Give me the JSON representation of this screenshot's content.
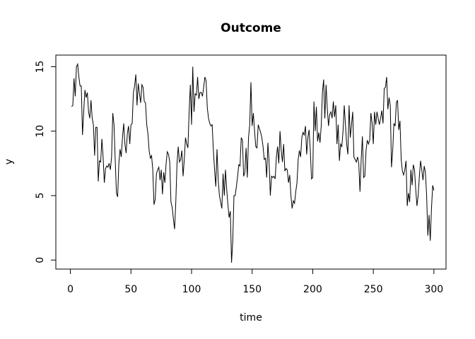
{
  "chart_data": {
    "type": "line",
    "title": "Outcome",
    "x_label": "time",
    "y_label": "y",
    "xlim": [
      -12,
      310
    ],
    "ylim": [
      -0.7,
      15.9
    ],
    "xticks": [
      0,
      50,
      100,
      150,
      200,
      250,
      300
    ],
    "yticks": [
      0,
      5,
      10,
      15
    ],
    "color": "#000000",
    "x": [
      1,
      2,
      3,
      4,
      5,
      6,
      7,
      8,
      9,
      10,
      11,
      12,
      13,
      14,
      15,
      16,
      17,
      18,
      19,
      20,
      21,
      22,
      23,
      24,
      25,
      26,
      27,
      28,
      29,
      30,
      31,
      32,
      33,
      34,
      35,
      36,
      37,
      38,
      39,
      40,
      41,
      42,
      43,
      44,
      45,
      46,
      47,
      48,
      49,
      50,
      51,
      52,
      53,
      54,
      55,
      56,
      57,
      58,
      59,
      60,
      61,
      62,
      63,
      64,
      65,
      66,
      67,
      68,
      69,
      70,
      71,
      72,
      73,
      74,
      75,
      76,
      77,
      78,
      79,
      80,
      81,
      82,
      83,
      84,
      85,
      86,
      87,
      88,
      89,
      90,
      91,
      92,
      93,
      94,
      95,
      96,
      97,
      98,
      99,
      100,
      101,
      102,
      103,
      104,
      105,
      106,
      107,
      108,
      109,
      110,
      111,
      112,
      113,
      114,
      115,
      116,
      117,
      118,
      119,
      120,
      121,
      122,
      123,
      124,
      125,
      126,
      127,
      128,
      129,
      130,
      131,
      132,
      133,
      134,
      135,
      136,
      137,
      138,
      139,
      140,
      141,
      142,
      143,
      144,
      145,
      146,
      147,
      148,
      149,
      150,
      151,
      152,
      153,
      154,
      155,
      156,
      157,
      158,
      159,
      160,
      161,
      162,
      163,
      164,
      165,
      166,
      167,
      168,
      169,
      170,
      171,
      172,
      173,
      174,
      175,
      176,
      177,
      178,
      179,
      180,
      181,
      182,
      183,
      184,
      185,
      186,
      187,
      188,
      189,
      190,
      191,
      192,
      193,
      194,
      195,
      196,
      197,
      198,
      199,
      200,
      201,
      202,
      203,
      204,
      205,
      206,
      207,
      208,
      209,
      210,
      211,
      212,
      213,
      214,
      215,
      216,
      217,
      218,
      219,
      220,
      221,
      222,
      223,
      224,
      225,
      226,
      227,
      228,
      229,
      230,
      231,
      232,
      233,
      234,
      235,
      236,
      237,
      238,
      239,
      240,
      241,
      242,
      243,
      244,
      245,
      246,
      247,
      248,
      249,
      250,
      251,
      252,
      253,
      254,
      255,
      256,
      257,
      258,
      259,
      260,
      261,
      262,
      263,
      264,
      265,
      266,
      267,
      268,
      269,
      270,
      271,
      272,
      273,
      274,
      275,
      276,
      277,
      278,
      279,
      280,
      281,
      282,
      283,
      284,
      285,
      286,
      287,
      288,
      289,
      290,
      291,
      292,
      293,
      294,
      295,
      296,
      297,
      298,
      299,
      300
    ],
    "values": [
      11.9,
      12.0,
      14.1,
      12.7,
      15.0,
      15.2,
      14.2,
      13.5,
      13.5,
      9.7,
      11.5,
      13.2,
      12.6,
      13.0,
      11.5,
      11.0,
      12.4,
      11.0,
      10.5,
      8.1,
      10.3,
      10.3,
      6.1,
      7.7,
      7.6,
      9.4,
      8.0,
      6.0,
      7.1,
      7.3,
      7.2,
      7.5,
      7.0,
      8.0,
      11.4,
      10.5,
      7.8,
      5.2,
      4.9,
      7.5,
      8.6,
      8.0,
      9.5,
      10.6,
      9.0,
      8.3,
      9.8,
      10.4,
      9.0,
      10.5,
      10.6,
      13.0,
      13.5,
      14.4,
      12.0,
      13.7,
      12.9,
      12.2,
      13.6,
      13.4,
      12.3,
      12.2,
      10.5,
      9.8,
      8.5,
      7.9,
      8.1,
      7.0,
      4.3,
      4.7,
      6.7,
      7.0,
      7.2,
      6.2,
      7.0,
      5.1,
      6.8,
      6.0,
      7.5,
      8.4,
      8.2,
      7.6,
      4.5,
      4.1,
      3.2,
      2.4,
      4.5,
      7.5,
      8.8,
      7.6,
      7.8,
      8.5,
      6.5,
      7.8,
      9.5,
      9.0,
      8.7,
      11.5,
      13.6,
      10.5,
      15.0,
      11.5,
      12.9,
      12.8,
      14.2,
      12.5,
      13.0,
      13.0,
      12.7,
      13.4,
      14.2,
      13.9,
      11.8,
      11.0,
      10.6,
      10.4,
      10.5,
      8.5,
      7.0,
      5.7,
      8.6,
      6.2,
      5.0,
      4.5,
      4.0,
      6.7,
      5.0,
      7.0,
      5.5,
      4.3,
      3.3,
      3.8,
      -0.2,
      1.5,
      5.0,
      5.0,
      5.7,
      6.5,
      7.4,
      7.3,
      9.5,
      9.3,
      6.5,
      6.8,
      8.7,
      6.4,
      9.5,
      10.5,
      13.8,
      10.4,
      11.4,
      10.0,
      8.8,
      8.7,
      10.5,
      10.2,
      9.9,
      9.5,
      8.8,
      7.8,
      7.9,
      6.4,
      9.1,
      7.6,
      5.0,
      6.5,
      6.4,
      6.5,
      6.3,
      8.0,
      8.8,
      7.5,
      10.0,
      8.5,
      7.6,
      9.0,
      6.9,
      7.1,
      7.0,
      6.0,
      6.6,
      5.0,
      4.0,
      4.6,
      4.4,
      5.3,
      6.0,
      7.8,
      8.5,
      8.0,
      9.5,
      9.9,
      9.7,
      10.4,
      8.2,
      9.5,
      10.1,
      8.5,
      6.3,
      6.4,
      12.3,
      10.0,
      11.9,
      9.2,
      9.9,
      9.1,
      10.4,
      13.0,
      14.0,
      11.0,
      13.6,
      11.8,
      10.4,
      11.3,
      11.5,
      11.0,
      12.3,
      11.1,
      12.0,
      9.0,
      10.5,
      7.7,
      9.0,
      8.8,
      10.0,
      12.0,
      10.5,
      9.0,
      8.2,
      12.0,
      9.5,
      10.5,
      11.5,
      8.0,
      7.8,
      7.6,
      8.0,
      7.5,
      5.3,
      7.8,
      9.6,
      6.4,
      6.5,
      8.5,
      9.3,
      9.0,
      9.3,
      11.4,
      10.6,
      9.0,
      11.5,
      10.5,
      11.5,
      11.0,
      10.5,
      11.0,
      11.6,
      10.6,
      13.3,
      13.4,
      14.2,
      11.7,
      12.6,
      12.0,
      7.2,
      8.5,
      10.6,
      10.4,
      12.2,
      12.4,
      10.1,
      10.8,
      7.8,
      6.9,
      6.6,
      7.0,
      7.7,
      4.2,
      5.2,
      4.5,
      7.0,
      5.8,
      7.4,
      7.0,
      5.5,
      4.2,
      5.0,
      6.5,
      7.7,
      7.0,
      6.2,
      7.3,
      6.8,
      5.0,
      1.9,
      3.5,
      1.5,
      4.0,
      5.8,
      5.4
    ]
  }
}
